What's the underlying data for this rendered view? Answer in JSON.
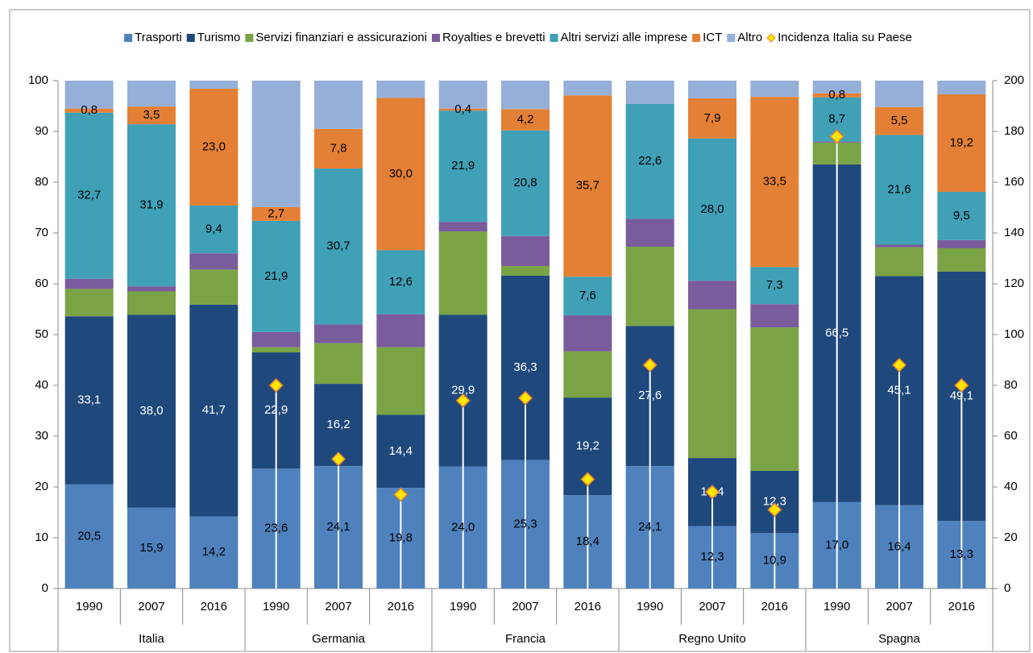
{
  "chart_data": {
    "type": "stacked_bar",
    "categories": [
      "1990",
      "2007",
      "2016",
      "1990",
      "2007",
      "2016",
      "1990",
      "2007",
      "2016",
      "1990",
      "2007",
      "2016",
      "1990",
      "2007",
      "2016"
    ],
    "groups": [
      "Italia",
      "Germania",
      "Francia",
      "Regno Unito",
      "Spagna"
    ],
    "ylim": [
      0,
      100
    ],
    "yticks": [
      0,
      10,
      20,
      30,
      40,
      50,
      60,
      70,
      80,
      90,
      100
    ],
    "y2lim": [
      0,
      200
    ],
    "y2ticks": [
      0,
      20,
      40,
      60,
      80,
      100,
      120,
      140,
      160,
      180,
      200
    ],
    "grid": false,
    "legend": "top",
    "series": [
      {
        "name": "Trasporti",
        "color": "#4f81bd",
        "values": [
          20.5,
          15.9,
          14.2,
          23.6,
          24.1,
          19.8,
          24.0,
          25.3,
          18.4,
          24.1,
          12.3,
          10.9,
          17.0,
          16.4,
          13.3
        ],
        "value_labels": [
          "20,5",
          "15,9",
          "14,2",
          "23,6",
          "24,1",
          "19,8",
          "24,0",
          "25,3",
          "18,4",
          "24,1",
          "12,3",
          "10,9",
          "17,0",
          "16,4",
          "13,3"
        ]
      },
      {
        "name": "Turismo",
        "color": "#1f497d",
        "values": [
          33.1,
          38.0,
          41.7,
          22.9,
          16.2,
          14.4,
          29.9,
          36.3,
          19.2,
          27.6,
          13.4,
          12.3,
          66.5,
          45.1,
          49.1
        ],
        "value_labels": [
          "33,1",
          "38,0",
          "41,7",
          "22,9",
          "16,2",
          "14,4",
          "29,9",
          "36,3",
          "19,2",
          "27,6",
          "13,4",
          "12,3",
          "66,5",
          "45,1",
          "49,1"
        ]
      },
      {
        "name": "Servizi finanziari e assicurazioni",
        "color": "#7aa345",
        "values": [
          5.4,
          4.6,
          6.9,
          1.0,
          8.0,
          13.3,
          16.4,
          1.9,
          9.1,
          15.6,
          29.3,
          28.2,
          4.3,
          5.7,
          4.6
        ]
      },
      {
        "name": "Royalties e brevetti",
        "color": "#7a5c9c",
        "values": [
          2.0,
          1.0,
          3.2,
          3.0,
          3.7,
          6.5,
          1.9,
          5.9,
          7.1,
          5.5,
          5.6,
          4.6,
          0.2,
          0.5,
          1.6
        ]
      },
      {
        "name": "Altri servizi alle imprese",
        "color": "#3fa0b6",
        "values": [
          32.7,
          31.9,
          9.4,
          21.9,
          30.7,
          12.6,
          21.9,
          20.8,
          7.6,
          22.6,
          28.0,
          7.3,
          8.7,
          21.6,
          9.5
        ],
        "value_labels": [
          "32,7",
          "31,9",
          "9,4",
          "21,9",
          "30,7",
          "12,6",
          "21,9",
          "20,8",
          "7,6",
          "22,6",
          "28,0",
          "7,3",
          "8,7",
          "21,6",
          "9,5"
        ]
      },
      {
        "name": "ICT",
        "color": "#e48035",
        "values": [
          0.8,
          3.5,
          23.0,
          2.7,
          7.8,
          30.0,
          0.4,
          4.2,
          35.7,
          0.0,
          7.9,
          33.5,
          0.8,
          5.5,
          19.2
        ],
        "value_labels": [
          "0,8",
          "3,5",
          "23,0",
          "2,7",
          "7,8",
          "30,0",
          "0,4",
          "4,2",
          "35,7",
          null,
          "7,9",
          "33,5",
          "0,8",
          "5,5",
          "19,2"
        ]
      },
      {
        "name": "Altro",
        "color": "#96afd8",
        "values": [
          5.5,
          5.1,
          1.6,
          24.9,
          9.5,
          3.4,
          5.5,
          5.6,
          2.9,
          4.6,
          3.5,
          3.2,
          2.5,
          5.2,
          2.7
        ]
      },
      {
        "name": "Incidenza Italia su Paese",
        "color": "#ffe600",
        "axis": "y2",
        "marker": "diamond",
        "values": [
          null,
          null,
          null,
          80,
          51,
          37,
          74,
          75,
          43,
          88,
          38,
          31,
          178,
          88,
          80
        ]
      }
    ]
  }
}
